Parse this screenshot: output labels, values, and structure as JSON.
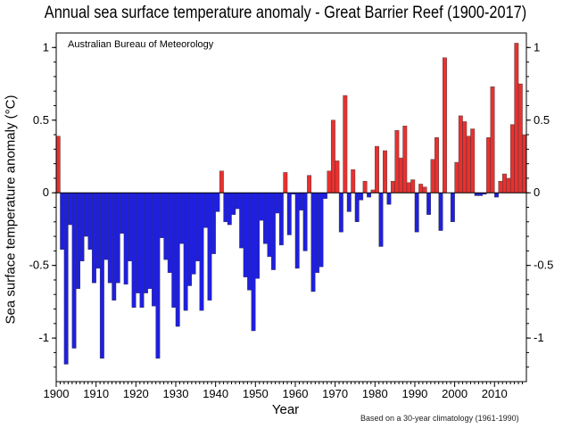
{
  "chart_data": {
    "type": "bar",
    "title": "Annual sea surface temperature anomaly - Great Barrier Reef (1900-2017)",
    "source_label": "Australian Bureau of Meteorology",
    "xlabel": "Year",
    "ylabel": "Sea surface temperature anomaly (°C)",
    "footnote": "Based on a 30-year climatology (1961-1990)",
    "xlim": [
      1900,
      2017
    ],
    "ylim": [
      -1.3,
      1.1
    ],
    "x_ticks": [
      1900,
      1910,
      1920,
      1930,
      1940,
      1950,
      1960,
      1970,
      1980,
      1990,
      2000,
      2010
    ],
    "y_ticks": [
      1,
      0.5,
      0,
      -0.5,
      -1
    ],
    "y_tick_labels": [
      "1",
      "0.5",
      "0",
      "-0.5",
      "-1"
    ],
    "colors": {
      "positive": "#e8312f",
      "negative": "#1f1fe0",
      "outline": "#333333"
    },
    "years": [
      1900,
      1901,
      1902,
      1903,
      1904,
      1905,
      1906,
      1907,
      1908,
      1909,
      1910,
      1911,
      1912,
      1913,
      1914,
      1915,
      1916,
      1917,
      1918,
      1919,
      1920,
      1921,
      1922,
      1923,
      1924,
      1925,
      1926,
      1927,
      1928,
      1929,
      1930,
      1931,
      1932,
      1933,
      1934,
      1935,
      1936,
      1937,
      1938,
      1939,
      1940,
      1941,
      1942,
      1943,
      1944,
      1945,
      1946,
      1947,
      1948,
      1949,
      1950,
      1951,
      1952,
      1953,
      1954,
      1955,
      1956,
      1957,
      1958,
      1959,
      1960,
      1961,
      1962,
      1963,
      1964,
      1965,
      1966,
      1967,
      1968,
      1969,
      1970,
      1971,
      1972,
      1973,
      1974,
      1975,
      1976,
      1977,
      1978,
      1979,
      1980,
      1981,
      1982,
      1983,
      1984,
      1985,
      1986,
      1987,
      1988,
      1989,
      1990,
      1991,
      1992,
      1993,
      1994,
      1995,
      1996,
      1997,
      1998,
      1999,
      2000,
      2001,
      2002,
      2003,
      2004,
      2005,
      2006,
      2007,
      2008,
      2009,
      2010,
      2011,
      2012,
      2013,
      2014,
      2015,
      2016,
      2017
    ],
    "values": [
      0.39,
      -0.39,
      -1.18,
      -0.22,
      -1.07,
      -0.66,
      -0.47,
      -0.3,
      -0.39,
      -0.62,
      -0.52,
      -1.14,
      -0.46,
      -0.62,
      -0.74,
      -0.62,
      -0.28,
      -0.63,
      -0.47,
      -0.79,
      -0.69,
      -0.79,
      -0.69,
      -0.66,
      -0.78,
      -1.14,
      -0.31,
      -0.46,
      -0.55,
      -0.79,
      -0.92,
      -0.35,
      -0.81,
      -0.64,
      -0.56,
      -0.47,
      -0.81,
      -0.24,
      -0.74,
      -0.42,
      -0.13,
      0.15,
      -0.2,
      -0.22,
      -0.15,
      -0.11,
      -0.38,
      -0.58,
      -0.67,
      -0.95,
      -0.59,
      -0.19,
      -0.35,
      -0.44,
      -0.53,
      -0.14,
      -0.36,
      0.14,
      -0.29,
      -0.01,
      -0.52,
      -0.12,
      -0.4,
      0.12,
      -0.68,
      -0.55,
      -0.51,
      -0.04,
      0.15,
      0.5,
      0.22,
      -0.27,
      0.67,
      -0.13,
      0.16,
      -0.2,
      -0.05,
      0.08,
      -0.03,
      0.02,
      0.32,
      -0.37,
      0.29,
      -0.08,
      0.08,
      0.43,
      0.24,
      0.46,
      0.07,
      0.09,
      -0.27,
      0.06,
      0.04,
      -0.15,
      0.23,
      0.38,
      -0.26,
      0.93,
      0.0,
      -0.2,
      0.21,
      0.53,
      0.49,
      0.39,
      0.44,
      -0.02,
      -0.02,
      -0.01,
      0.38,
      0.73,
      -0.03,
      0.08,
      0.13,
      0.1,
      0.47,
      1.03,
      0.75,
      0.4
    ]
  }
}
